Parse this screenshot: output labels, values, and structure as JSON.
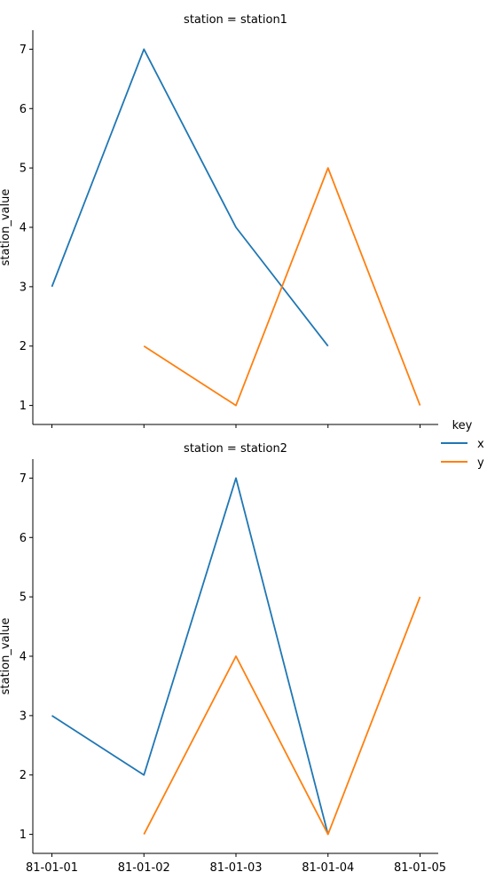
{
  "chart_data": {
    "type": "line",
    "x": [
      "81-01-01",
      "81-01-02",
      "81-01-03",
      "81-01-04",
      "81-01-05"
    ],
    "ylabel": "station_value",
    "ylim": [
      0.68,
      7.32
    ],
    "yticks": [
      1,
      2,
      3,
      4,
      5,
      6,
      7
    ],
    "legend": {
      "title": "key",
      "placement": "right",
      "entries": [
        {
          "name": "x",
          "color": "#1f77b4"
        },
        {
          "name": "y",
          "color": "#ff7f0e"
        }
      ]
    },
    "facets": [
      {
        "title": "station = station1",
        "series": [
          {
            "name": "x",
            "color": "#1f77b4",
            "values": [
              3,
              7,
              4,
              2,
              null
            ]
          },
          {
            "name": "y",
            "color": "#ff7f0e",
            "values": [
              null,
              2,
              1,
              5,
              1
            ]
          }
        ]
      },
      {
        "title": "station = station2",
        "series": [
          {
            "name": "x",
            "color": "#1f77b4",
            "values": [
              3,
              2,
              7,
              1,
              null
            ]
          },
          {
            "name": "y",
            "color": "#ff7f0e",
            "values": [
              null,
              1,
              4,
              1,
              5
            ]
          }
        ]
      }
    ]
  }
}
